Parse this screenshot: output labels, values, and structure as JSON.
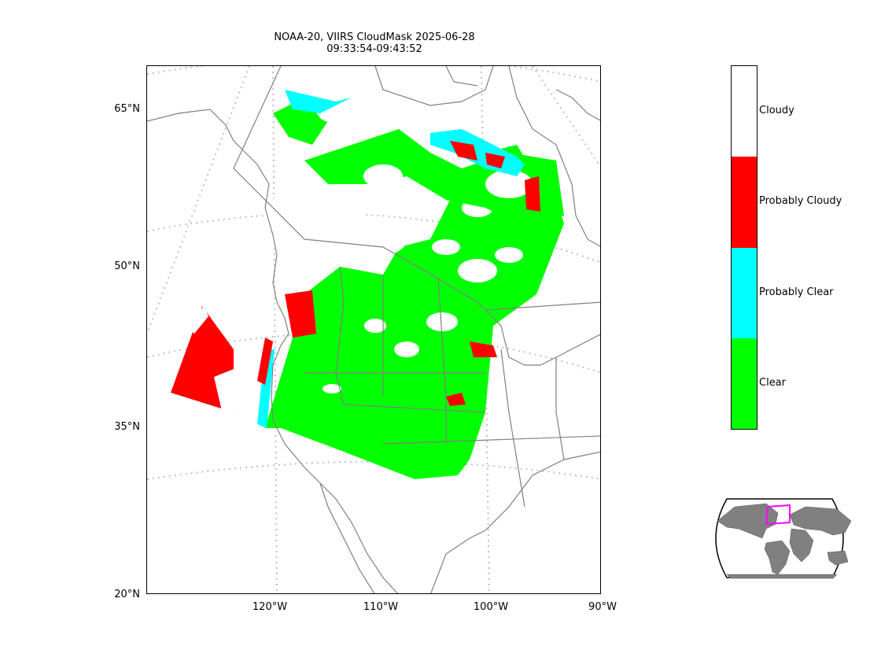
{
  "title": {
    "line1": "NOAA-20, VIIRS CloudMask 2025-06-28",
    "line2": "09:33:54-09:43:52"
  },
  "axes": {
    "lat_labels": [
      "65°N",
      "50°N",
      "35°N",
      "20°N"
    ],
    "lon_labels": [
      "120°W",
      "110°W",
      "100°W",
      "90°W"
    ]
  },
  "legend": {
    "classes": [
      {
        "label": "Cloudy",
        "color": "#ffffff"
      },
      {
        "label": "Probably Cloudy",
        "color": "#ff0000"
      },
      {
        "label": "Probably Clear",
        "color": "#00ffff"
      },
      {
        "label": "Clear",
        "color": "#00ff00"
      }
    ]
  },
  "colors": {
    "coastline": "#808080",
    "graticule": "#c0c0c0",
    "inset_land": "#808080",
    "inset_box": "#ff00ff"
  }
}
